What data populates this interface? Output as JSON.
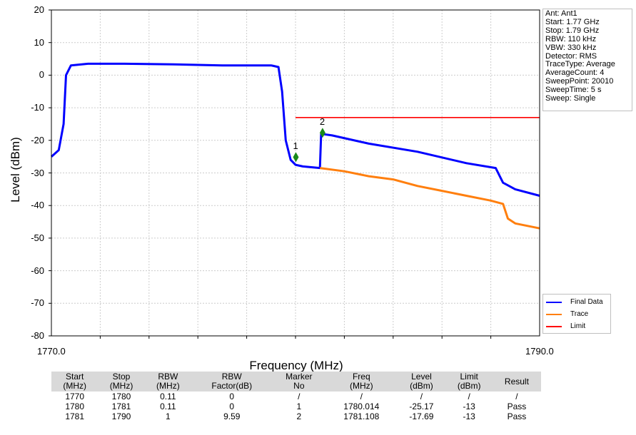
{
  "chart_data": {
    "type": "line",
    "xlabel": "Frequency (MHz)",
    "ylabel": "Level (dBm)",
    "xlim": [
      1770,
      1790
    ],
    "ylim": [
      -80,
      20
    ],
    "x_tick_labels": [
      "1770.0",
      "1790.0"
    ],
    "y_ticks": [
      "20",
      "10",
      "0",
      "-10",
      "-20",
      "-30",
      "-40",
      "-50",
      "-60",
      "-70",
      "-80"
    ],
    "grid": true,
    "legend_position": "bottom-right",
    "series": [
      {
        "name": "Final Data",
        "color": "#0000ff",
        "x": [
          1770.0,
          1770.3,
          1770.5,
          1770.6,
          1770.8,
          1771.5,
          1773,
          1775,
          1777,
          1779,
          1779.3,
          1779.45,
          1779.6,
          1779.8,
          1780.0,
          1780.3,
          1781.0,
          1781.05,
          1781.5,
          1783,
          1785,
          1787,
          1788.2,
          1788.5,
          1789,
          1790.0
        ],
        "y": [
          -25,
          -23,
          -15,
          0,
          3,
          3.5,
          3.5,
          3.3,
          3,
          3,
          2.5,
          -5,
          -20,
          -26,
          -27.5,
          -28,
          -28.5,
          -18,
          -18.5,
          -21,
          -23.5,
          -27,
          -28.5,
          -33,
          -35,
          -37
        ]
      },
      {
        "name": "Trace",
        "color": "#ff7f0e",
        "x": [
          1781.0,
          1782,
          1783,
          1784,
          1785,
          1786,
          1787,
          1788,
          1788.5,
          1788.7,
          1789,
          1790.0
        ],
        "y": [
          -28.5,
          -29.5,
          -31,
          -32,
          -34,
          -35.5,
          -37,
          -38.5,
          -39.5,
          -44,
          -45.5,
          -47
        ]
      },
      {
        "name": "Limit",
        "color": "#ff0000",
        "x": [
          1780.0,
          1790.0
        ],
        "y": [
          -13,
          -13
        ]
      }
    ],
    "markers": [
      {
        "label": "1",
        "x": 1780.014,
        "y": -25.17,
        "color": "#1a8a1a"
      },
      {
        "label": "2",
        "x": 1781.108,
        "y": -17.69,
        "color": "#1a8a1a"
      }
    ],
    "info": [
      "Ant: Ant1",
      "Start: 1.77 GHz",
      "Stop: 1.79 GHz",
      "RBW: 110 kHz",
      "VBW: 330 kHz",
      "Detector: RMS",
      "TraceType: Average",
      "AverageCount: 4",
      "SweepPoint: 20010",
      "SweepTime: 5 s",
      "Sweep: Single"
    ]
  },
  "table": {
    "headers": [
      [
        "Start",
        "(MHz)"
      ],
      [
        "Stop",
        "(MHz)"
      ],
      [
        "RBW",
        "(MHz)"
      ],
      [
        "RBW",
        "Factor(dB)"
      ],
      [
        "Marker",
        "No"
      ],
      [
        "Freq",
        "(MHz)"
      ],
      [
        "Level",
        "(dBm)"
      ],
      [
        "Limit",
        "(dBm)"
      ],
      [
        "Result",
        ""
      ]
    ],
    "rows": [
      [
        "1770",
        "1780",
        "0.11",
        "0",
        "/",
        "/",
        "/",
        "/",
        "/"
      ],
      [
        "1780",
        "1781",
        "0.11",
        "0",
        "1",
        "1780.014",
        "-25.17",
        "-13",
        "Pass"
      ],
      [
        "1781",
        "1790",
        "1",
        "9.59",
        "2",
        "1781.108",
        "-17.69",
        "-13",
        "Pass"
      ]
    ]
  }
}
